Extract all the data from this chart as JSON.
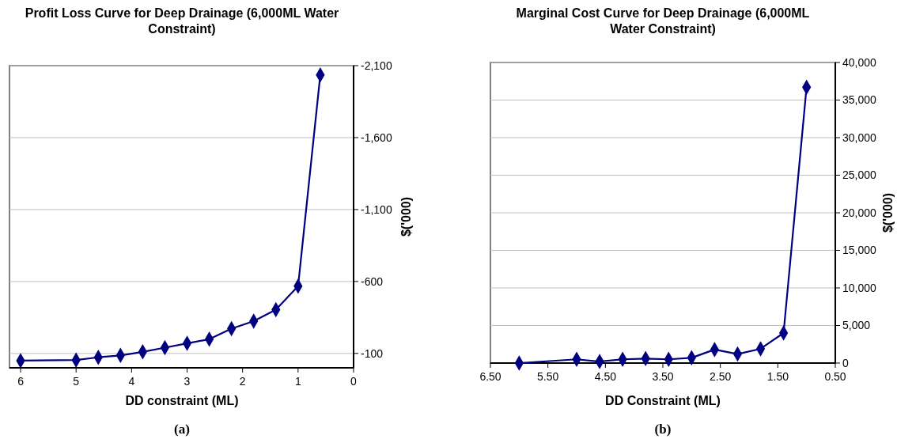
{
  "chart_data": [
    {
      "type": "line",
      "title": "Profit Loss Curve for Deep Drainage (6,000ML Water Constraint)",
      "xlabel": "DD constraint (ML)",
      "ylabel": "$('000)",
      "annotations": [
        "(a)"
      ],
      "grid": "y",
      "marker": "diamond",
      "line_style": "solid",
      "x": [
        6,
        5,
        4.6,
        4.2,
        3.8,
        3.4,
        3,
        2.6,
        2.2,
        1.8,
        1.4,
        1,
        0.6
      ],
      "series": [
        {
          "color": "#000080",
          "values": [
            -50,
            -54,
            -73,
            -86,
            -111,
            -140,
            -170,
            -199,
            -272,
            -324,
            -404,
            -567,
            -2035
          ]
        }
      ],
      "xlim": [
        6.2,
        0
      ],
      "xticks": [
        6,
        5,
        4,
        3,
        2,
        1,
        0
      ],
      "ylim": [
        0,
        -2100
      ],
      "yticks": [
        {
          "value": -100,
          "label": "-100"
        },
        {
          "value": -600,
          "label": "-600"
        },
        {
          "value": -1100,
          "label": "-1,100"
        },
        {
          "value": -1600,
          "label": "-1,600"
        },
        {
          "value": -2100,
          "label": "-2,100"
        }
      ]
    },
    {
      "type": "line",
      "title": "Marginal Cost Curve for Deep Drainage (6,000ML Water Constraint)",
      "xlabel": "DD Constraint (ML)",
      "ylabel": "$('000)",
      "annotations": [
        "(b)"
      ],
      "grid": "y",
      "marker": "diamond",
      "line_style": "solid",
      "x": [
        6,
        5,
        4.6,
        4.2,
        3.8,
        3.4,
        3,
        2.6,
        2.2,
        1.8,
        1.4,
        1
      ],
      "series": [
        {
          "color": "#000080",
          "values": [
            0,
            500,
            200,
            500,
            600,
            500,
            700,
            1800,
            1200,
            1900,
            4000,
            36700
          ]
        }
      ],
      "xlim": [
        6.5,
        0.5
      ],
      "xticks": [
        {
          "value": 6.5,
          "label": "6.50"
        },
        {
          "value": 5.5,
          "label": "5.50"
        },
        {
          "value": 4.5,
          "label": "4.50"
        },
        {
          "value": 3.5,
          "label": "3.50"
        },
        {
          "value": 2.5,
          "label": "2.50"
        },
        {
          "value": 1.5,
          "label": "1.50"
        },
        {
          "value": 0.5,
          "label": "0.50"
        }
      ],
      "ylim": [
        0,
        40000
      ],
      "yticks": [
        0,
        {
          "value": 5000,
          "label": "5,000"
        },
        {
          "value": 10000,
          "label": "10,000"
        },
        {
          "value": 15000,
          "label": "15,000"
        },
        {
          "value": 20000,
          "label": "20,000"
        },
        {
          "value": 25000,
          "label": "25,000"
        },
        {
          "value": 30000,
          "label": "30,000"
        },
        {
          "value": 35000,
          "label": "35,000"
        },
        {
          "value": 40000,
          "label": "40,000"
        }
      ]
    }
  ]
}
